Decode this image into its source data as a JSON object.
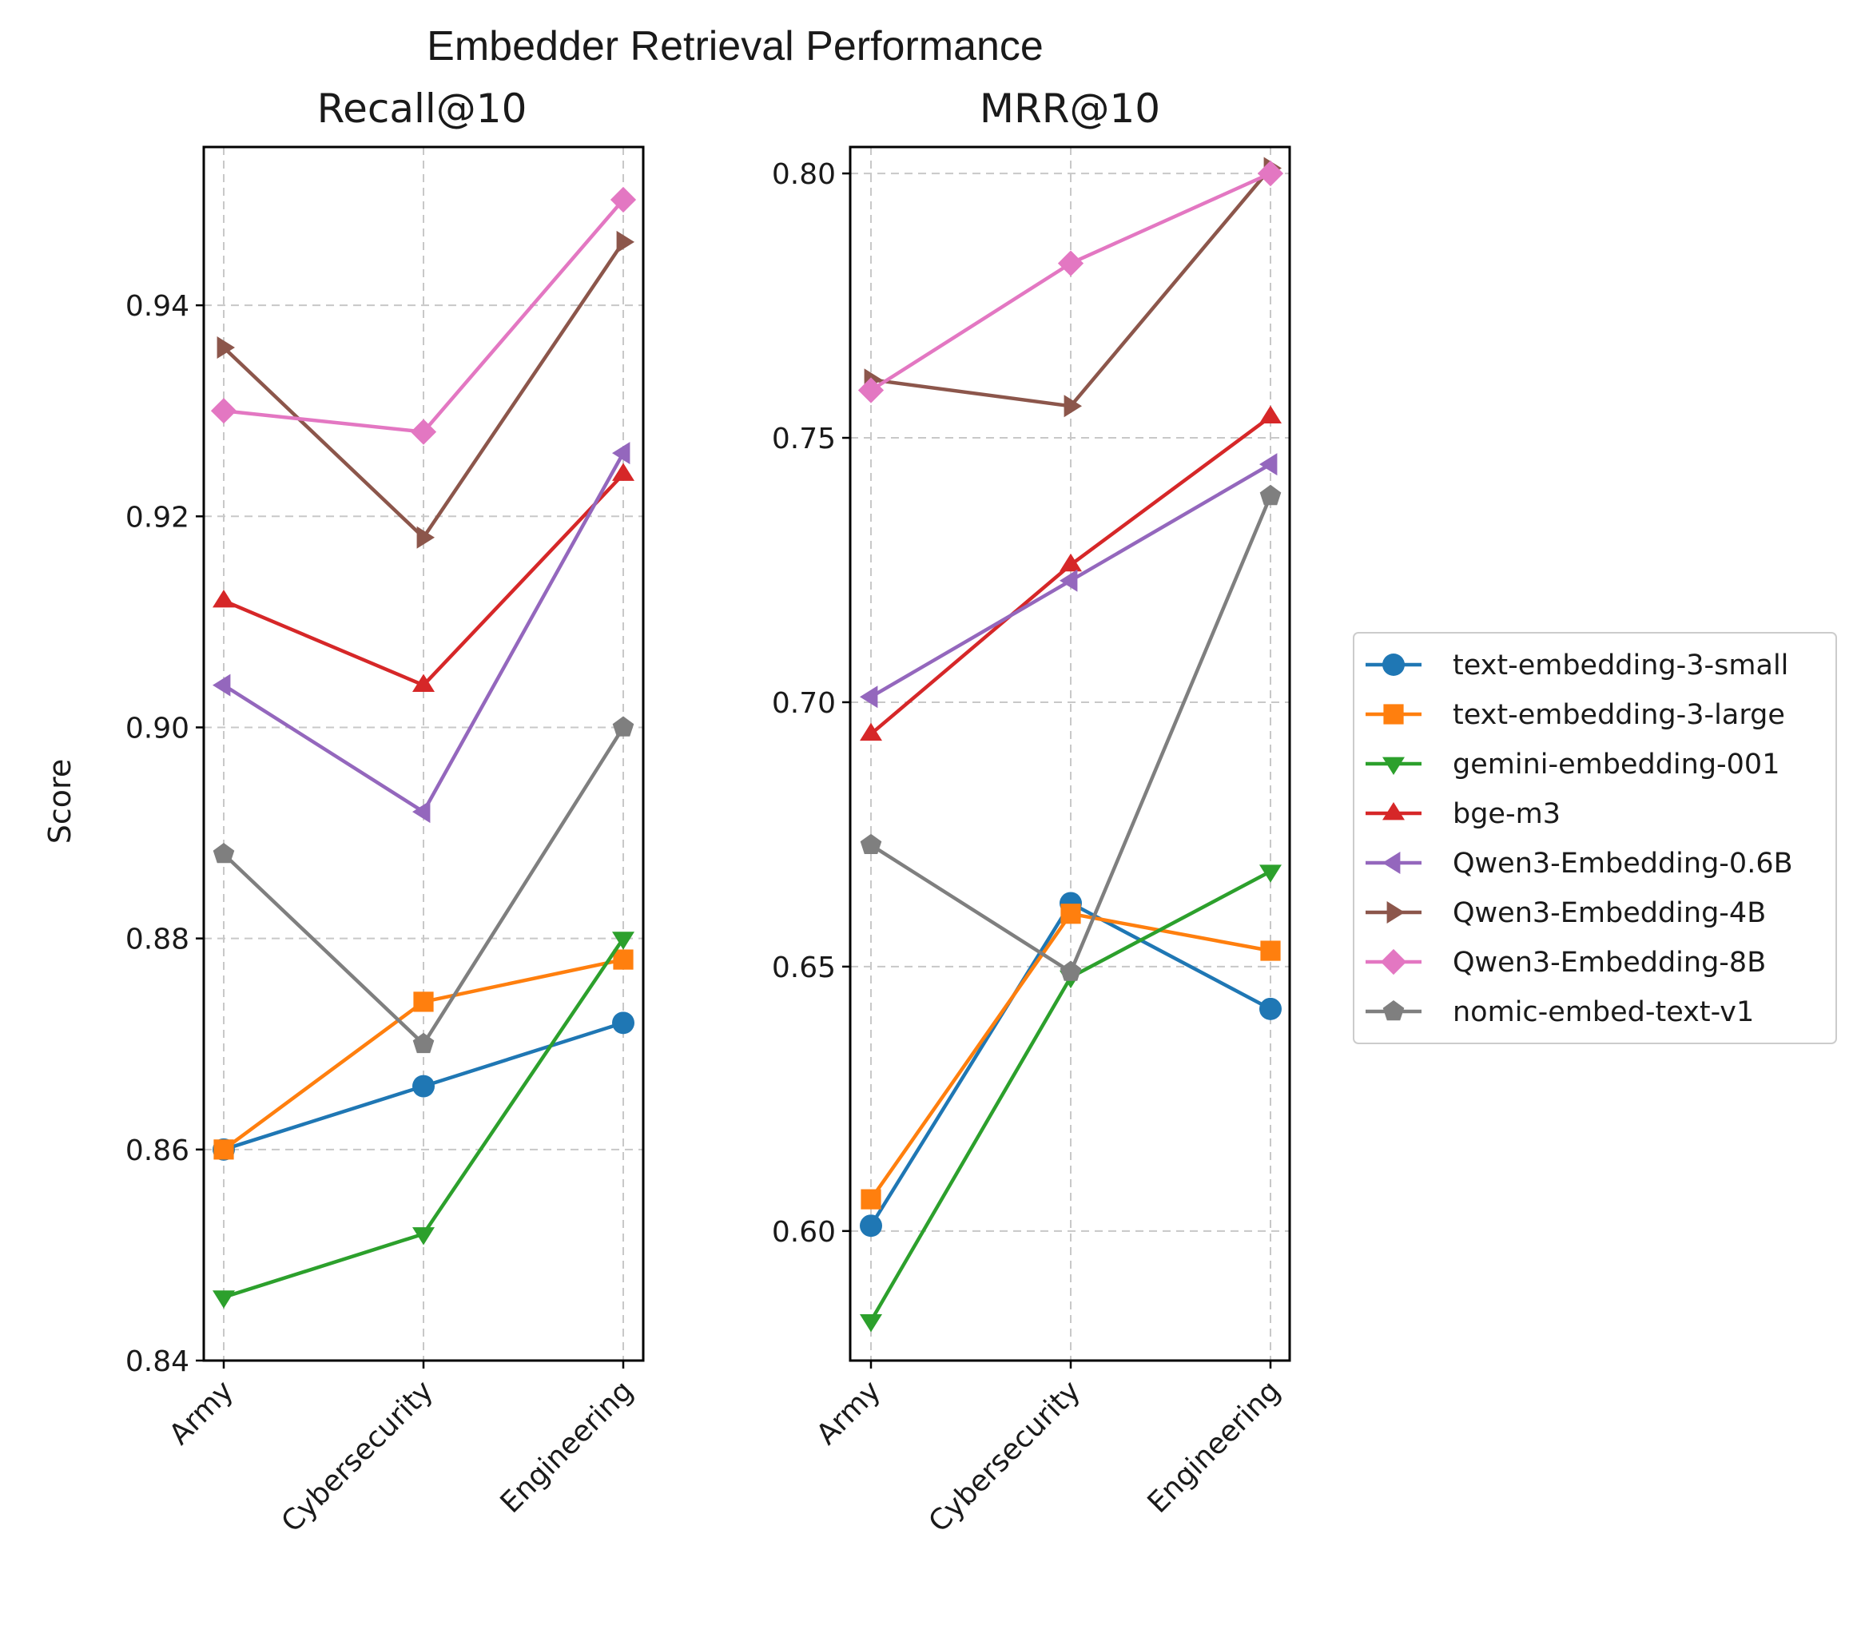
{
  "figure_title": "Embedder Retrieval Performance",
  "shared_ylabel": "Score",
  "series_style": [
    {
      "name": "text-embedding-3-small",
      "color": "#1f77b4",
      "marker": "circle"
    },
    {
      "name": "text-embedding-3-large",
      "color": "#ff7f0e",
      "marker": "square"
    },
    {
      "name": "gemini-embedding-001",
      "color": "#2ca02c",
      "marker": "triangle-down"
    },
    {
      "name": "bge-m3",
      "color": "#d62728",
      "marker": "triangle-up"
    },
    {
      "name": "Qwen3-Embedding-0.6B",
      "color": "#9467bd",
      "marker": "triangle-left"
    },
    {
      "name": "Qwen3-Embedding-4B",
      "color": "#8c564b",
      "marker": "triangle-right"
    },
    {
      "name": "Qwen3-Embedding-8B",
      "color": "#e377c2",
      "marker": "diamond"
    },
    {
      "name": "nomic-embed-text-v1",
      "color": "#7f7f7f",
      "marker": "pentagon"
    }
  ],
  "chart_data": [
    {
      "type": "line",
      "title": "Recall@10",
      "xlabel": "",
      "ylabel": "Score",
      "categories": [
        "Army",
        "Cybersecurity",
        "Engineering"
      ],
      "ylim": [
        0.84,
        0.955
      ],
      "yticks": [
        "0.84",
        "0.86",
        "0.88",
        "0.90",
        "0.92",
        "0.94"
      ],
      "grid": true,
      "series": [
        {
          "name": "text-embedding-3-small",
          "values": [
            0.86,
            0.866,
            0.872
          ]
        },
        {
          "name": "text-embedding-3-large",
          "values": [
            0.86,
            0.874,
            0.878
          ]
        },
        {
          "name": "gemini-embedding-001",
          "values": [
            0.846,
            0.852,
            0.88
          ]
        },
        {
          "name": "bge-m3",
          "values": [
            0.912,
            0.904,
            0.924
          ]
        },
        {
          "name": "Qwen3-Embedding-0.6B",
          "values": [
            0.904,
            0.892,
            0.926
          ]
        },
        {
          "name": "Qwen3-Embedding-4B",
          "values": [
            0.936,
            0.918,
            0.946
          ]
        },
        {
          "name": "Qwen3-Embedding-8B",
          "values": [
            0.93,
            0.928,
            0.95
          ]
        },
        {
          "name": "nomic-embed-text-v1",
          "values": [
            0.888,
            0.87,
            0.9
          ]
        }
      ]
    },
    {
      "type": "line",
      "title": "MRR@10",
      "xlabel": "",
      "ylabel": "",
      "categories": [
        "Army",
        "Cybersecurity",
        "Engineering"
      ],
      "ylim": [
        0.5755,
        0.805
      ],
      "yticks": [
        "0.60",
        "0.65",
        "0.70",
        "0.75",
        "0.80"
      ],
      "grid": true,
      "series": [
        {
          "name": "text-embedding-3-small",
          "values": [
            0.601,
            0.662,
            0.642
          ]
        },
        {
          "name": "text-embedding-3-large",
          "values": [
            0.606,
            0.66,
            0.653
          ]
        },
        {
          "name": "gemini-embedding-001",
          "values": [
            0.583,
            0.648,
            0.668
          ]
        },
        {
          "name": "bge-m3",
          "values": [
            0.694,
            0.726,
            0.754
          ]
        },
        {
          "name": "Qwen3-Embedding-0.6B",
          "values": [
            0.701,
            0.723,
            0.745
          ]
        },
        {
          "name": "Qwen3-Embedding-4B",
          "values": [
            0.761,
            0.756,
            0.801
          ]
        },
        {
          "name": "Qwen3-Embedding-8B",
          "values": [
            0.759,
            0.783,
            0.8
          ]
        },
        {
          "name": "nomic-embed-text-v1",
          "values": [
            0.673,
            0.649,
            0.739
          ]
        }
      ]
    }
  ],
  "legend": {
    "location": "right",
    "entries": [
      "text-embedding-3-small",
      "text-embedding-3-large",
      "gemini-embedding-001",
      "bge-m3",
      "Qwen3-Embedding-0.6B",
      "Qwen3-Embedding-4B",
      "Qwen3-Embedding-8B",
      "nomic-embed-text-v1"
    ]
  }
}
